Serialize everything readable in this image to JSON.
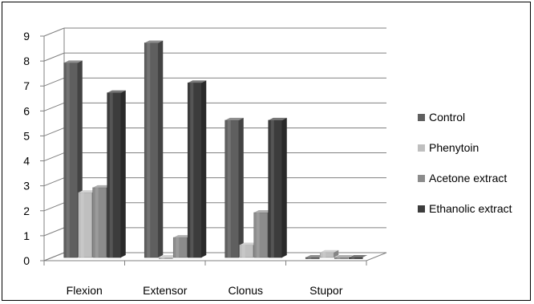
{
  "chart_data": {
    "type": "bar",
    "three_d": true,
    "categories": [
      "Flexion",
      "Extensor",
      "Clonus",
      "Stupor"
    ],
    "series": [
      {
        "name": "Control",
        "values": [
          7.8,
          8.6,
          5.5,
          0
        ],
        "color": "#5f5f5f"
      },
      {
        "name": "Phenytoin",
        "values": [
          2.6,
          0,
          0.5,
          0.2
        ],
        "color": "#bfbfbf"
      },
      {
        "name": "Acetone extract",
        "values": [
          2.8,
          0.8,
          1.8,
          0
        ],
        "color": "#8c8c8c"
      },
      {
        "name": "Ethanolic extract",
        "values": [
          6.6,
          7.0,
          5.5,
          0
        ],
        "color": "#3c3c3c"
      }
    ],
    "y_ticks": [
      "0",
      "1",
      "2",
      "3",
      "4",
      "5",
      "6",
      "7",
      "8",
      "9"
    ],
    "ylim": [
      0,
      9
    ],
    "grid": true,
    "legend_position": "right"
  }
}
